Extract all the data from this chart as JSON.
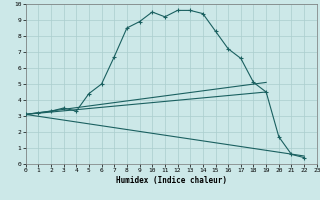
{
  "xlabel": "Humidex (Indice chaleur)",
  "bg_color": "#cce8e8",
  "line_color": "#1a6060",
  "grid_color": "#aacece",
  "xlim": [
    0,
    23
  ],
  "ylim": [
    0,
    10
  ],
  "xticks": [
    0,
    1,
    2,
    3,
    4,
    5,
    6,
    7,
    8,
    9,
    10,
    11,
    12,
    13,
    14,
    15,
    16,
    17,
    18,
    19,
    20,
    21,
    22,
    23
  ],
  "yticks": [
    0,
    1,
    2,
    3,
    4,
    5,
    6,
    7,
    8,
    9,
    10
  ],
  "curve1_x": [
    0,
    1,
    2,
    3,
    4,
    5,
    6,
    7,
    8,
    9,
    10,
    11,
    12,
    13,
    14,
    15,
    16,
    17,
    18,
    19,
    20,
    21,
    22
  ],
  "curve1_y": [
    3.1,
    3.2,
    3.3,
    3.5,
    3.3,
    4.4,
    5.0,
    6.7,
    8.5,
    8.9,
    9.5,
    9.2,
    9.6,
    9.6,
    9.4,
    8.3,
    7.2,
    6.6,
    5.1,
    4.5,
    1.7,
    0.6,
    0.4
  ],
  "curve2_x": [
    0,
    19
  ],
  "curve2_y": [
    3.1,
    5.1
  ],
  "curve3_x": [
    0,
    19
  ],
  "curve3_y": [
    3.1,
    4.5
  ],
  "curve4_x": [
    0,
    22
  ],
  "curve4_y": [
    3.1,
    0.5
  ]
}
